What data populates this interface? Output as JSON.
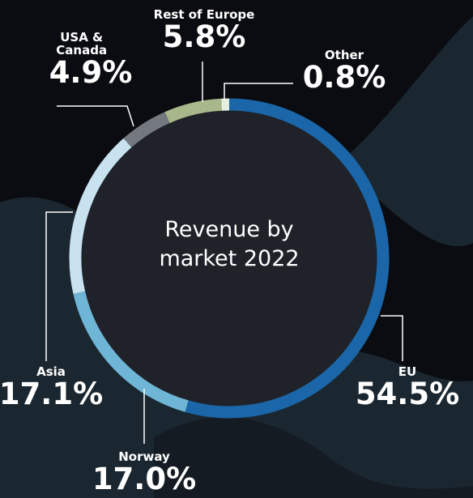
{
  "chart_data": {
    "type": "pie",
    "title": "Revenue by market 2022",
    "categories": [
      "EU",
      "Norway",
      "Asia",
      "USA & Canada",
      "Rest of Europe",
      "Other"
    ],
    "values": [
      54.5,
      17.0,
      17.1,
      4.9,
      5.8,
      0.8
    ],
    "value_labels": [
      "54.5%",
      "17.0%",
      "17.1%",
      "4.9%",
      "5.8%",
      "0.8%"
    ],
    "colors": [
      "#1a66a8",
      "#6fb5d6",
      "#c8e2f0",
      "#74787f",
      "#a9b88b",
      "#e6efdf"
    ]
  }
}
